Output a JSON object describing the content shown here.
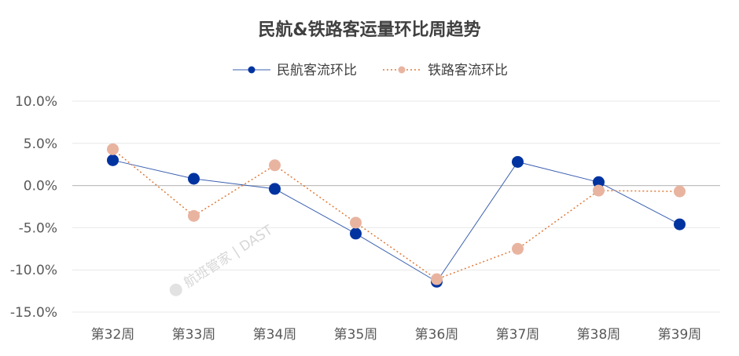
{
  "chart_data": {
    "type": "line",
    "title": "民航&铁路客运量环比周趋势",
    "categories": [
      "第32周",
      "第33周",
      "第34周",
      "第35周",
      "第36周",
      "第37周",
      "第38周",
      "第39周"
    ],
    "series": [
      {
        "name": "民航客流环比",
        "values": [
          3.0,
          0.8,
          -0.4,
          -5.7,
          -11.4,
          2.8,
          0.4,
          -4.6
        ],
        "color": "#0033a0"
      },
      {
        "name": "铁路客流环比",
        "values": [
          4.3,
          -3.6,
          2.4,
          -4.4,
          -11.1,
          -7.5,
          -0.6,
          -0.7
        ],
        "color": "#e8b4a0"
      }
    ],
    "ylim": [
      -15,
      10
    ],
    "yticks": [
      "10.0%",
      "5.0%",
      "0.0%",
      "-5.0%",
      "-10.0%",
      "-15.0%"
    ],
    "grid": true,
    "legend_position": "top-center"
  },
  "watermark": "航班管家 | DAST"
}
